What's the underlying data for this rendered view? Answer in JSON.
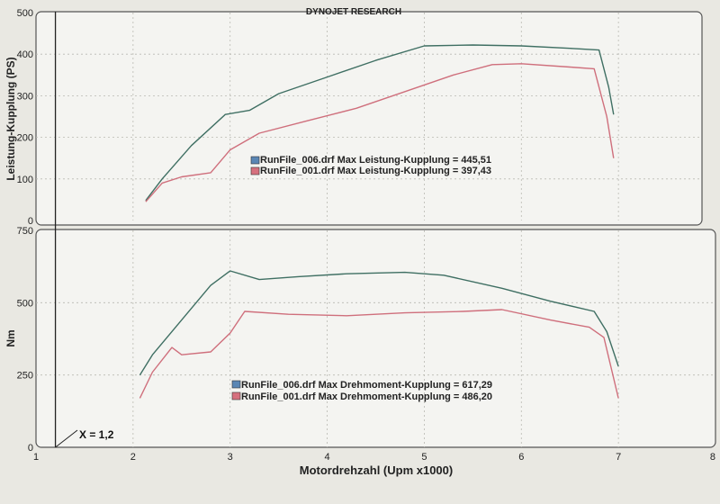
{
  "header": {
    "title": "DYNOJET RESEARCH"
  },
  "x_marker": {
    "label": "X = 1,2",
    "value": 1.2
  },
  "chart_data": [
    {
      "type": "line",
      "title": "DYNOJET RESEARCH",
      "ylabel": "Leistung-Kupplung (PS)",
      "xlabel": "",
      "xlim": [
        1,
        8
      ],
      "ylim": [
        0,
        500
      ],
      "yticks": [
        0,
        100,
        200,
        300,
        400,
        500
      ],
      "grid": true,
      "legend": [
        {
          "series": "RunFile_006.drf",
          "text": "RunFile_006.drf Max Leistung-Kupplung = 445,51"
        },
        {
          "series": "RunFile_001.drf",
          "text": "RunFile_001.drf Max Leistung-Kupplung = 397,43"
        }
      ],
      "series": [
        {
          "name": "RunFile_006.drf",
          "color": "#3f6f63",
          "x": [
            2.13,
            2.3,
            2.6,
            2.95,
            3.2,
            3.5,
            4.0,
            4.5,
            5.0,
            5.5,
            6.0,
            6.5,
            6.8,
            6.9,
            6.95
          ],
          "y": [
            48,
            100,
            180,
            255,
            265,
            305,
            345,
            385,
            420,
            422,
            420,
            414,
            410,
            320,
            255
          ]
        },
        {
          "name": "RunFile_001.drf",
          "color": "#cf6f7c",
          "x": [
            2.13,
            2.3,
            2.5,
            2.8,
            3.0,
            3.3,
            3.8,
            4.3,
            4.8,
            5.3,
            5.7,
            6.0,
            6.5,
            6.75,
            6.88,
            6.95
          ],
          "y": [
            45,
            90,
            105,
            115,
            170,
            210,
            240,
            270,
            310,
            350,
            375,
            377,
            369,
            365,
            250,
            150
          ]
        }
      ]
    },
    {
      "type": "line",
      "title": "",
      "ylabel": "Nm",
      "xlabel": "Motordrehzahl (Upm x1000)",
      "xlim": [
        1,
        8
      ],
      "ylim": [
        0,
        750
      ],
      "xticks": [
        1,
        2,
        3,
        4,
        5,
        6,
        7,
        8
      ],
      "yticks": [
        0,
        250,
        500,
        750
      ],
      "grid": true,
      "legend": [
        {
          "series": "RunFile_006.drf",
          "text": "RunFile_006.drf Max Drehmoment-Kupplung = 617,29"
        },
        {
          "series": "RunFile_001.drf",
          "text": "RunFile_001.drf Max Drehmoment-Kupplung = 486,20"
        }
      ],
      "series": [
        {
          "name": "RunFile_006.drf",
          "color": "#3f6f63",
          "x": [
            2.07,
            2.2,
            2.5,
            2.8,
            3.0,
            3.3,
            3.7,
            4.2,
            4.8,
            5.2,
            5.8,
            6.3,
            6.75,
            6.88,
            7.0
          ],
          "y": [
            250,
            320,
            440,
            560,
            610,
            580,
            590,
            600,
            605,
            595,
            550,
            505,
            470,
            400,
            280
          ]
        },
        {
          "name": "RunFile_001.drf",
          "color": "#cf6f7c",
          "x": [
            2.07,
            2.2,
            2.4,
            2.5,
            2.8,
            3.0,
            3.15,
            3.6,
            4.2,
            4.8,
            5.4,
            5.8,
            6.3,
            6.7,
            6.85,
            7.0
          ],
          "y": [
            170,
            260,
            345,
            320,
            330,
            395,
            470,
            460,
            455,
            465,
            470,
            476,
            440,
            415,
            380,
            170
          ]
        }
      ]
    }
  ]
}
